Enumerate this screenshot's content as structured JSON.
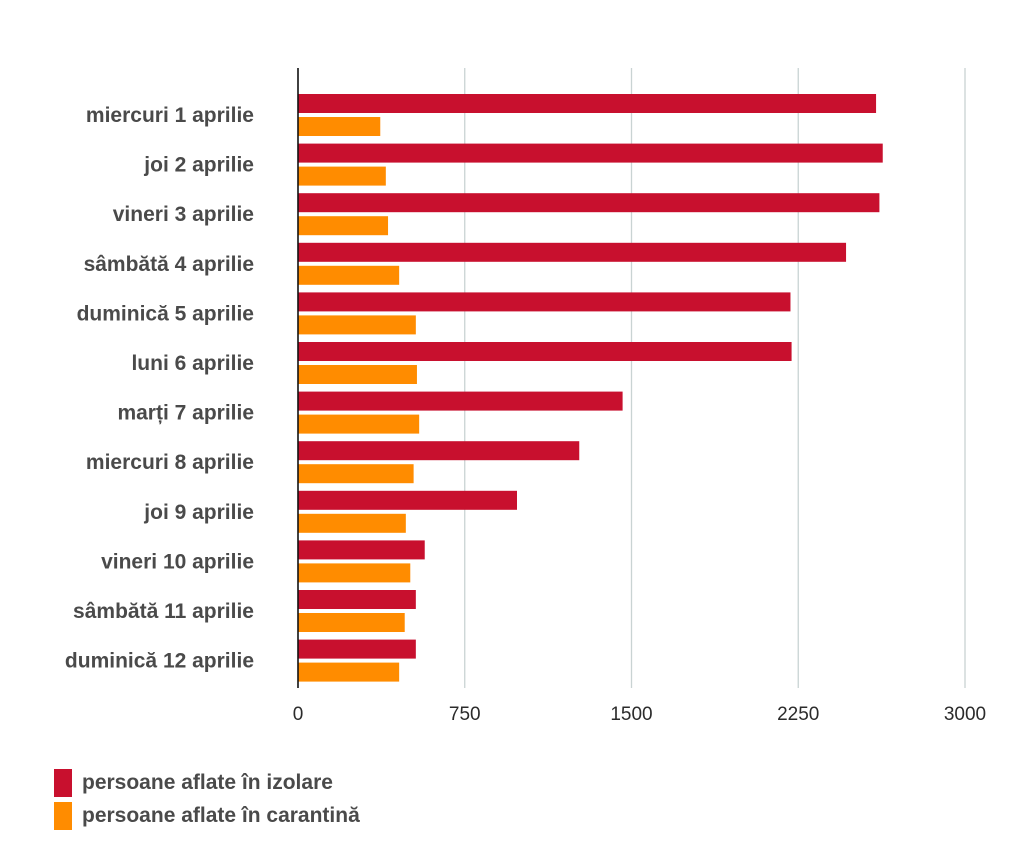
{
  "chart_data": {
    "type": "bar",
    "orientation": "horizontal",
    "categories": [
      "miercuri 1 aprilie",
      "joi 2 aprilie",
      "vineri 3 aprilie",
      "sâmbătă 4 aprilie",
      "duminică 5 aprilie",
      "luni 6 aprilie",
      "marți 7 aprilie",
      "miercuri 8 aprilie",
      "joi 9 aprilie",
      "vineri 10 aprilie",
      "sâmbătă 11 aprilie",
      "duminică 12 aprilie"
    ],
    "series": [
      {
        "name": "persoane aflate în izolare",
        "color": "#c8102e",
        "values": [
          2600,
          2630,
          2615,
          2465,
          2215,
          2220,
          1460,
          1265,
          985,
          570,
          530,
          530
        ]
      },
      {
        "name": "persoane aflate în carantină",
        "color": "#ff8c00",
        "values": [
          370,
          395,
          405,
          455,
          530,
          535,
          545,
          520,
          485,
          505,
          480,
          455
        ]
      }
    ],
    "xlim": [
      0,
      3000
    ],
    "xticks": [
      "0",
      "750",
      "1500",
      "2250",
      "3000"
    ],
    "grid": true,
    "legend_position": "bottom-left",
    "title": "",
    "xlabel": "",
    "ylabel": ""
  }
}
